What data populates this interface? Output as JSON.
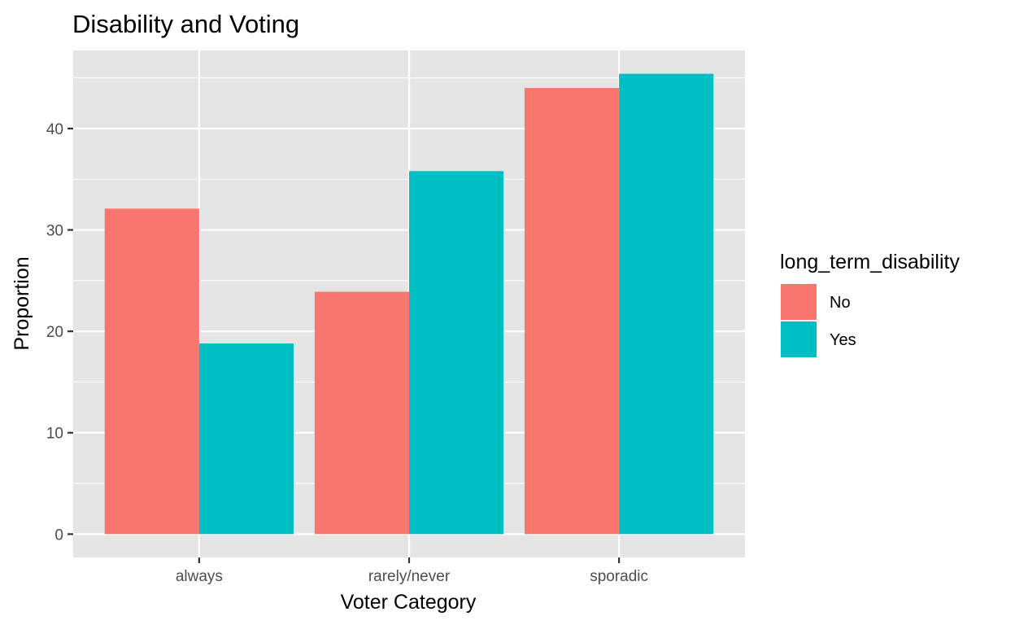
{
  "chart_data": {
    "type": "bar",
    "title": "Disability and Voting",
    "xlabel": "Voter Category",
    "ylabel": "Proportion",
    "categories": [
      "always",
      "rarely/never",
      "sporadic"
    ],
    "series": [
      {
        "name": "No",
        "color": "#F8766D",
        "values": [
          32.1,
          23.9,
          44.0
        ]
      },
      {
        "name": "Yes",
        "color": "#00BFC4",
        "values": [
          18.8,
          35.8,
          45.4
        ]
      }
    ],
    "yticks": [
      0,
      10,
      20,
      30,
      40
    ],
    "ylim": [
      -2.3,
      47.7
    ],
    "grid": true,
    "legend": {
      "title": "long_term_disability",
      "position": "right"
    }
  }
}
